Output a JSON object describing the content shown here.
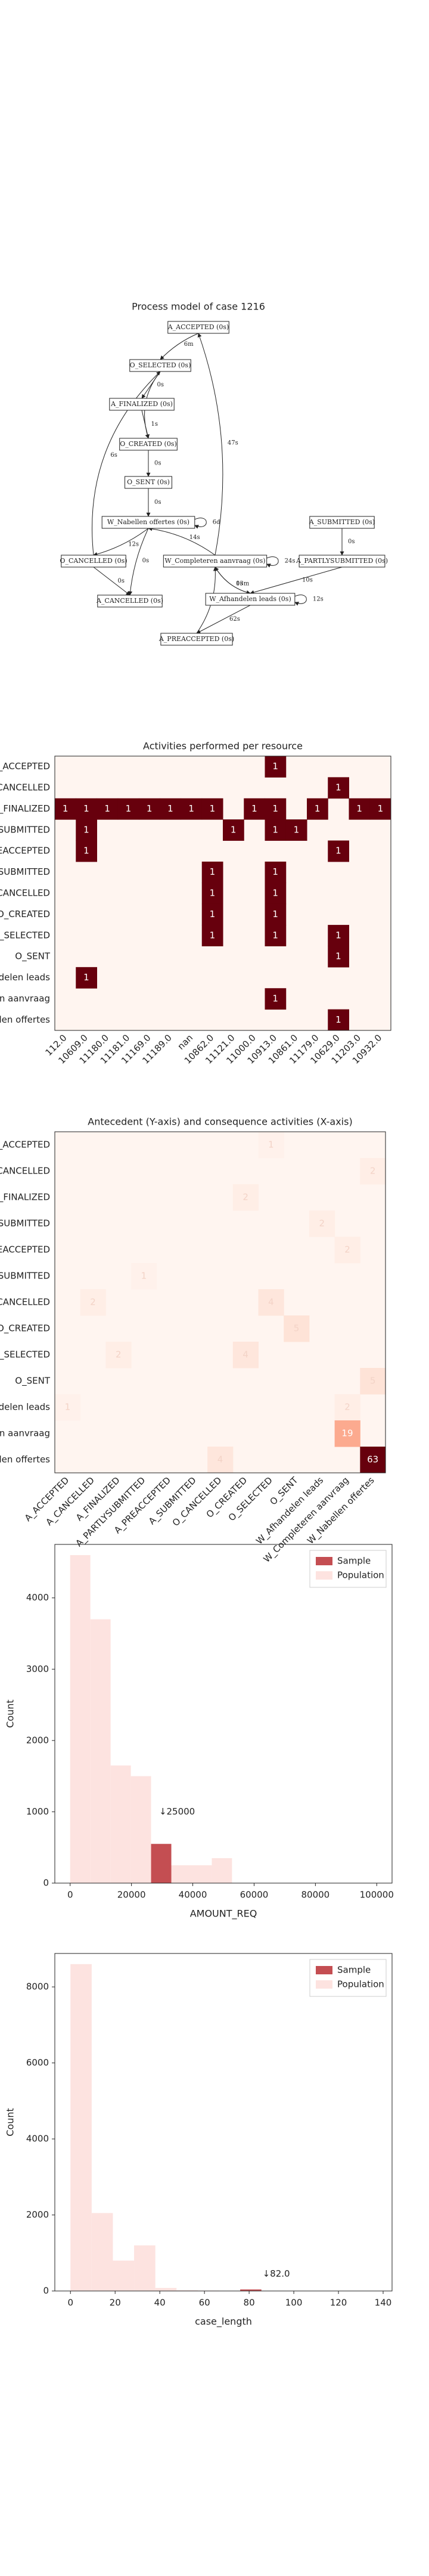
{
  "chart_data": [
    {
      "type": "graph",
      "title": "Process model of case 1216",
      "nodes": [
        "A_ACCEPTED (0s)",
        "O_SELECTED (0s)",
        "A_FINALIZED (0s)",
        "O_CREATED (0s)",
        "O_SENT (0s)",
        "W_Nabellen offertes (0s)",
        "A_SUBMITTED (0s)",
        "O_CANCELLED (0s)",
        "W_Completeren aanvraag (0s)",
        "A_PARTLYSUBMITTED (0s)",
        "A_CANCELLED (0s)",
        "W_Afhandelen leads (0s)",
        "A_PREACCEPTED (0s)"
      ],
      "edges": [
        {
          "from": 0,
          "to": 1,
          "label": "6m"
        },
        {
          "from": 1,
          "to": 2,
          "label": "0s"
        },
        {
          "from": 2,
          "to": 3,
          "label": "1s"
        },
        {
          "from": 1,
          "to": 3,
          "label": "1s"
        },
        {
          "from": 3,
          "to": 4,
          "label": "0s"
        },
        {
          "from": 4,
          "to": 5,
          "label": "0s"
        },
        {
          "from": 5,
          "to": 5,
          "label": "6d"
        },
        {
          "from": 5,
          "to": 7,
          "label": "12s"
        },
        {
          "from": 5,
          "to": 10,
          "label": "0s"
        },
        {
          "from": 7,
          "to": 10,
          "label": "0s"
        },
        {
          "from": 7,
          "to": 1,
          "label": "6s"
        },
        {
          "from": 8,
          "to": 5,
          "label": "14s"
        },
        {
          "from": 8,
          "to": 8,
          "label": "24s"
        },
        {
          "from": 8,
          "to": 0,
          "label": "47s"
        },
        {
          "from": 6,
          "to": 9,
          "label": "0s"
        },
        {
          "from": 9,
          "to": 11,
          "label": "10s"
        },
        {
          "from": 11,
          "to": 11,
          "label": "12s"
        },
        {
          "from": 11,
          "to": 8,
          "label": "0s"
        },
        {
          "from": 8,
          "to": 11,
          "label": "13m"
        },
        {
          "from": 11,
          "to": 12,
          "label": "62s"
        },
        {
          "from": 12,
          "to": 8,
          "label": "0s"
        }
      ]
    },
    {
      "type": "heatmap",
      "title": "Activities performed per resource",
      "cmap": "Reds",
      "vlim": [
        0,
        1
      ],
      "categories": [
        "112.0",
        "10609.0",
        "11180.0",
        "11181.0",
        "11169.0",
        "11189.0",
        "nan",
        "10862.0",
        "11121.0",
        "11000.0",
        "10913.0",
        "10861.0",
        "11179.0",
        "10629.0",
        "11203.0",
        "10932.0"
      ],
      "rows": [
        "A_ACCEPTED",
        "A_CANCELLED",
        "A_FINALIZED",
        "A_PARTLYSUBMITTED",
        "A_PREACCEPTED",
        "A_SUBMITTED",
        "O_CANCELLED",
        "O_CREATED",
        "O_SELECTED",
        "O_SENT",
        "W_Afhandelen leads",
        "W_Completeren aanvraag",
        "W_Nabellen offertes"
      ],
      "values": [
        [
          null,
          null,
          null,
          null,
          null,
          null,
          null,
          null,
          null,
          null,
          1,
          null,
          null,
          null,
          null,
          null
        ],
        [
          null,
          null,
          null,
          null,
          null,
          null,
          null,
          null,
          null,
          null,
          null,
          null,
          null,
          1,
          null,
          null
        ],
        [
          1,
          1,
          1,
          1,
          1,
          1,
          1,
          1,
          null,
          1,
          1,
          null,
          1,
          null,
          1,
          1
        ],
        [
          null,
          1,
          null,
          null,
          null,
          null,
          null,
          null,
          1,
          null,
          1,
          1,
          null,
          null,
          null,
          null
        ],
        [
          null,
          1,
          null,
          null,
          null,
          null,
          null,
          null,
          null,
          null,
          null,
          null,
          null,
          1,
          null,
          null
        ],
        [
          null,
          null,
          null,
          null,
          null,
          null,
          null,
          1,
          null,
          null,
          1,
          null,
          null,
          null,
          null,
          null
        ],
        [
          null,
          null,
          null,
          null,
          null,
          null,
          null,
          1,
          null,
          null,
          1,
          null,
          null,
          null,
          null,
          null
        ],
        [
          null,
          null,
          null,
          null,
          null,
          null,
          null,
          1,
          null,
          null,
          1,
          null,
          null,
          null,
          null,
          null
        ],
        [
          null,
          null,
          null,
          null,
          null,
          null,
          null,
          1,
          null,
          null,
          1,
          null,
          null,
          1,
          null,
          null
        ],
        [
          null,
          null,
          null,
          null,
          null,
          null,
          null,
          null,
          null,
          null,
          null,
          null,
          null,
          1,
          null,
          null
        ],
        [
          null,
          1,
          null,
          null,
          null,
          null,
          null,
          null,
          null,
          null,
          null,
          null,
          null,
          null,
          null,
          null
        ],
        [
          null,
          null,
          null,
          null,
          null,
          null,
          null,
          null,
          null,
          null,
          1,
          null,
          null,
          null,
          null,
          null
        ],
        [
          null,
          null,
          null,
          null,
          null,
          null,
          null,
          null,
          null,
          null,
          null,
          null,
          null,
          1,
          null,
          null
        ]
      ]
    },
    {
      "type": "heatmap",
      "title": "Antecedent (Y-axis) and consequence activities (X-axis)",
      "cmap": "Reds",
      "vlim": [
        0,
        63
      ],
      "categories": [
        "A_ACCEPTED",
        "A_CANCELLED",
        "A_FINALIZED",
        "A_PARTLYSUBMITTED",
        "A_PREACCEPTED",
        "A_SUBMITTED",
        "O_CANCELLED",
        "O_CREATED",
        "O_SELECTED",
        "O_SENT",
        "W_Afhandelen leads",
        "W_Completeren aanvraag",
        "W_Nabellen offertes"
      ],
      "rows": [
        "A_ACCEPTED",
        "A_CANCELLED",
        "A_FINALIZED",
        "A_PARTLYSUBMITTED",
        "A_PREACCEPTED",
        "A_SUBMITTED",
        "O_CANCELLED",
        "O_CREATED",
        "O_SELECTED",
        "O_SENT",
        "W_Afhandelen leads",
        "W_Completeren aanvraag",
        "W_Nabellen offertes"
      ],
      "values": [
        [
          null,
          null,
          null,
          null,
          null,
          null,
          null,
          null,
          1,
          null,
          null,
          null,
          null
        ],
        [
          null,
          null,
          null,
          null,
          null,
          null,
          null,
          null,
          null,
          null,
          null,
          null,
          2
        ],
        [
          null,
          null,
          null,
          null,
          null,
          null,
          null,
          2,
          null,
          null,
          null,
          null,
          null
        ],
        [
          null,
          null,
          null,
          null,
          null,
          null,
          null,
          null,
          null,
          null,
          2,
          null,
          null
        ],
        [
          null,
          null,
          null,
          null,
          null,
          null,
          null,
          null,
          null,
          null,
          null,
          2,
          null
        ],
        [
          null,
          null,
          null,
          1,
          null,
          null,
          null,
          null,
          null,
          null,
          null,
          null,
          null
        ],
        [
          null,
          2,
          null,
          null,
          null,
          null,
          null,
          null,
          4,
          null,
          null,
          null,
          null
        ],
        [
          null,
          null,
          null,
          null,
          null,
          null,
          null,
          null,
          null,
          5,
          null,
          null,
          null
        ],
        [
          null,
          null,
          2,
          null,
          null,
          null,
          null,
          4,
          null,
          null,
          null,
          null,
          null
        ],
        [
          null,
          null,
          null,
          null,
          null,
          null,
          null,
          null,
          null,
          null,
          null,
          null,
          5
        ],
        [
          1,
          null,
          null,
          null,
          null,
          null,
          null,
          null,
          null,
          null,
          null,
          2,
          null
        ],
        [
          null,
          null,
          null,
          null,
          null,
          null,
          null,
          null,
          null,
          null,
          null,
          19,
          null
        ],
        [
          null,
          null,
          null,
          null,
          null,
          null,
          4,
          null,
          null,
          null,
          null,
          null,
          63
        ]
      ]
    },
    {
      "type": "histogram",
      "xlabel": "AMOUNT_REQ",
      "ylabel": "Count",
      "legend": "upper right",
      "bins": [
        0,
        6600,
        13200,
        19800,
        26400,
        33000,
        39600,
        46200,
        52800
      ],
      "series": [
        {
          "name": "Sample",
          "color": "#c44e52",
          "values": [
            0,
            0,
            0,
            0,
            550,
            0,
            0,
            0
          ]
        },
        {
          "name": "Population",
          "color": "#fde3e0",
          "values": [
            4600,
            3700,
            1650,
            1500,
            500,
            250,
            250,
            350
          ]
        }
      ],
      "xlim": [
        -5000,
        105000
      ],
      "xticks": [
        0,
        20000,
        40000,
        60000,
        80000,
        100000
      ],
      "ylim": [
        0,
        4750
      ],
      "yticks": [
        0,
        1000,
        2000,
        3000,
        4000
      ],
      "annotation": {
        "text": "↓25000",
        "x": 29000,
        "y": 1000
      }
    },
    {
      "type": "histogram",
      "xlabel": "case_length",
      "ylabel": "Count",
      "legend": "upper right",
      "bins": [
        0,
        9.5,
        19,
        28.5,
        38,
        47.5,
        57,
        66.5,
        76,
        85.5,
        95
      ],
      "series": [
        {
          "name": "Sample",
          "color": "#c44e52",
          "values": [
            0,
            0,
            0,
            0,
            0,
            0,
            0,
            0,
            40,
            0
          ]
        },
        {
          "name": "Population",
          "color": "#fde3e0",
          "values": [
            8600,
            2050,
            800,
            1200,
            80,
            20,
            10,
            5,
            5,
            2
          ]
        }
      ],
      "xlim": [
        -7,
        144
      ],
      "xticks": [
        0,
        20,
        40,
        60,
        80,
        100,
        120,
        140
      ],
      "ylim": [
        0,
        8880
      ],
      "yticks": [
        0,
        2000,
        4000,
        6000,
        8000
      ],
      "annotation": {
        "text": "↓82.0",
        "x": 86,
        "y": 450
      }
    }
  ]
}
